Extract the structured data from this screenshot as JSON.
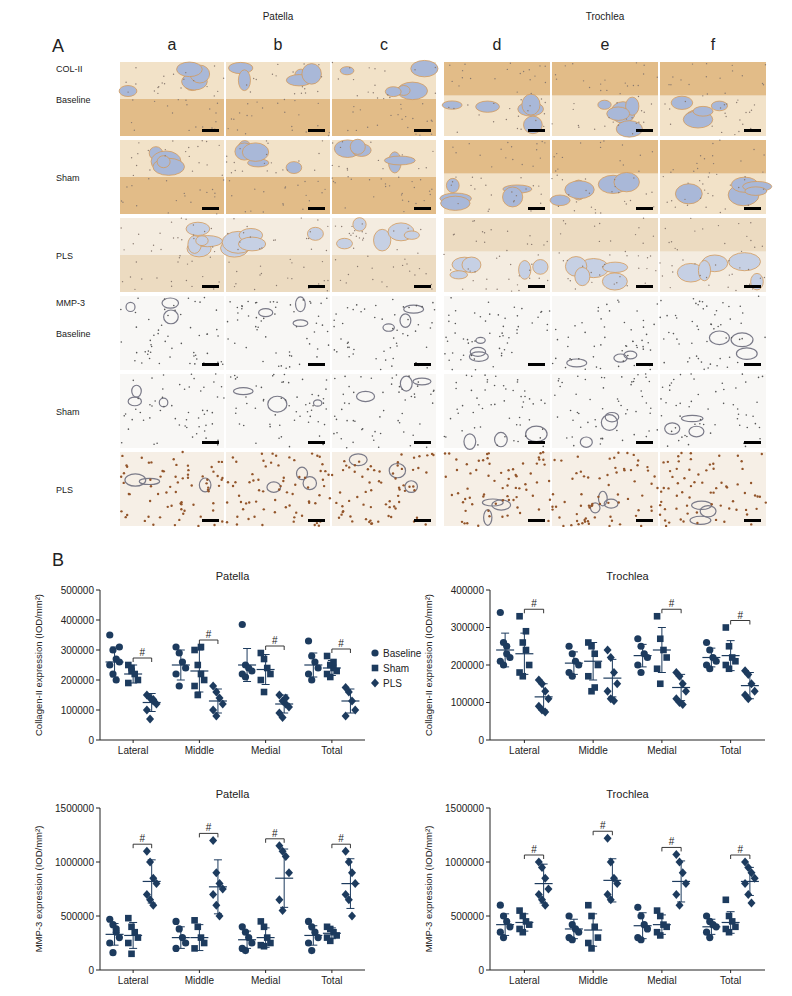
{
  "panel_a": {
    "label": "A",
    "groups": [
      {
        "title": "Patella",
        "columns": [
          "a",
          "b",
          "c"
        ]
      },
      {
        "title": "Trochlea",
        "columns": [
          "d",
          "e",
          "f"
        ]
      }
    ],
    "sections": [
      {
        "stain": "COL-II",
        "rows": [
          "Baseline",
          "Sham",
          "PLS"
        ]
      },
      {
        "stain": "MMP-3",
        "rows": [
          "Baseline",
          "Sham",
          "PLS"
        ]
      }
    ]
  },
  "panel_b": {
    "label": "B"
  },
  "chart_data": [
    {
      "type": "scatter",
      "title": "Patella",
      "y_label": "Collagen-II expression (IOD/mm²)",
      "categories": [
        "Lateral",
        "Middle",
        "Medial",
        "Total"
      ],
      "ylim": [
        0,
        500000
      ],
      "yticks": [
        0,
        100000,
        200000,
        300000,
        400000,
        500000
      ],
      "legend": "right",
      "series": [
        {
          "name": "Baseline",
          "marker": "circle",
          "color": "#1d3b5e",
          "values": [
            [
              350000,
              300000,
              270000,
              260000,
              250000,
              220000,
              200000,
              310000
            ],
            [
              310000,
              290000,
              260000,
              240000,
              220000,
              180000
            ],
            [
              385000,
              250000,
              240000,
              230000,
              220000,
              210000
            ],
            [
              330000,
              280000,
              260000,
              240000,
              220000,
              200000
            ]
          ],
          "mean": [
            260000,
            250000,
            250000,
            250000
          ],
          "sd": [
            50000,
            50000,
            55000,
            40000
          ]
        },
        {
          "name": "Sham",
          "marker": "square",
          "color": "#1d3b5e",
          "values": [
            [
              250000,
              230000,
              220000,
              200000,
              190000,
              240000
            ],
            [
              300000,
              250000,
              220000,
              200000,
              180000,
              150000,
              310000
            ],
            [
              290000,
              270000,
              240000,
              220000,
              200000,
              160000
            ],
            [
              280000,
              250000,
              240000,
              230000,
              220000,
              210000,
              260000
            ]
          ],
          "mean": [
            220000,
            230000,
            235000,
            240000
          ],
          "sd": [
            30000,
            70000,
            50000,
            25000
          ]
        },
        {
          "name": "PLS",
          "marker": "diamond",
          "color": "#1d3b5e",
          "values": [
            [
              150000,
              140000,
              130000,
              120000,
              100000,
              70000,
              135000
            ],
            [
              180000,
              160000,
              140000,
              120000,
              100000,
              80000
            ],
            [
              150000,
              130000,
              120000,
              110000,
              90000,
              75000,
              140000
            ],
            [
              175000,
              160000,
              130000,
              100000,
              80000
            ]
          ],
          "mean": [
            125000,
            130000,
            120000,
            130000
          ],
          "sd": [
            30000,
            40000,
            30000,
            40000
          ]
        }
      ],
      "annotations": [
        {
          "text": "#",
          "category": "Lateral",
          "between": [
            "Sham",
            "PLS"
          ]
        },
        {
          "text": "#",
          "category": "Middle",
          "between": [
            "Sham",
            "PLS"
          ]
        },
        {
          "text": "#",
          "category": "Medial",
          "between": [
            "Sham",
            "PLS"
          ]
        },
        {
          "text": "#",
          "category": "Total",
          "between": [
            "Sham",
            "PLS"
          ]
        }
      ]
    },
    {
      "type": "scatter",
      "title": "Trochlea",
      "y_label": "Collagen-II expression (IOD/mm²)",
      "categories": [
        "Lateral",
        "Middle",
        "Medial",
        "Total"
      ],
      "ylim": [
        0,
        400000
      ],
      "yticks": [
        0,
        100000,
        200000,
        300000,
        400000
      ],
      "series": [
        {
          "name": "Baseline",
          "marker": "circle",
          "color": "#1d3b5e",
          "values": [
            [
              340000,
              260000,
              230000,
              220000,
              210000,
              200000,
              250000
            ],
            [
              250000,
              230000,
              210000,
              200000,
              180000,
              170000
            ],
            [
              270000,
              250000,
              230000,
              220000,
              200000,
              180000
            ],
            [
              260000,
              240000,
              220000,
              210000,
              200000,
              190000
            ]
          ],
          "mean": [
            240000,
            205000,
            225000,
            220000
          ],
          "sd": [
            45000,
            30000,
            30000,
            25000
          ]
        },
        {
          "name": "Sham",
          "marker": "square",
          "color": "#1d3b5e",
          "values": [
            [
              330000,
              260000,
              240000,
              200000,
              180000,
              170000,
              290000
            ],
            [
              260000,
              250000,
              230000,
              200000,
              170000,
              130000,
              140000
            ],
            [
              330000,
              270000,
              240000,
              220000,
              190000,
              150000
            ],
            [
              300000,
              250000,
              220000,
              210000,
              200000,
              190000
            ]
          ],
          "mean": [
            230000,
            210000,
            240000,
            225000
          ],
          "sd": [
            55000,
            50000,
            60000,
            40000
          ]
        },
        {
          "name": "PLS",
          "marker": "diamond",
          "color": "#1d3b5e",
          "values": [
            [
              160000,
              150000,
              130000,
              110000,
              90000,
              80000,
              75000
            ],
            [
              240000,
              220000,
              180000,
              150000,
              130000,
              110000,
              105000
            ],
            [
              180000,
              170000,
              150000,
              130000,
              110000,
              100000,
              95000
            ],
            [
              185000,
              175000,
              150000,
              130000,
              120000,
              110000
            ]
          ],
          "mean": [
            115000,
            165000,
            140000,
            145000
          ],
          "sd": [
            35000,
            50000,
            35000,
            35000
          ]
        }
      ],
      "annotations": [
        {
          "text": "#",
          "category": "Lateral",
          "between": [
            "Sham",
            "PLS"
          ]
        },
        {
          "text": "#",
          "category": "Medial",
          "between": [
            "Sham",
            "PLS"
          ]
        },
        {
          "text": "#",
          "category": "Total",
          "between": [
            "Sham",
            "PLS"
          ]
        }
      ]
    },
    {
      "type": "scatter",
      "title": "Patella",
      "y_label": "MMP-3 expression (IOD/mm²)",
      "categories": [
        "Lateral",
        "Middle",
        "Medial",
        "Total"
      ],
      "ylim": [
        0,
        1500000
      ],
      "yticks": [
        0,
        500000,
        1000000,
        1500000
      ],
      "series": [
        {
          "name": "Baseline",
          "marker": "circle",
          "color": "#1d3b5e",
          "values": [
            [
              470000,
              420000,
              350000,
              300000,
              250000,
              160000,
              380000
            ],
            [
              450000,
              380000,
              300000,
              250000,
              200000
            ],
            [
              400000,
              350000,
              300000,
              250000,
              200000,
              180000
            ],
            [
              450000,
              400000,
              350000,
              300000,
              250000,
              180000
            ]
          ],
          "mean": [
            330000,
            300000,
            280000,
            320000
          ],
          "sd": [
            100000,
            100000,
            80000,
            90000
          ]
        },
        {
          "name": "Sham",
          "marker": "square",
          "color": "#1d3b5e",
          "values": [
            [
              480000,
              400000,
              350000,
              300000,
              250000,
              150000
            ],
            [
              460000,
              400000,
              300000,
              250000,
              200000
            ],
            [
              450000,
              400000,
              300000,
              250000,
              230000,
              220000
            ],
            [
              400000,
              380000,
              350000,
              320000,
              300000,
              270000
            ]
          ],
          "mean": [
            320000,
            300000,
            300000,
            340000
          ],
          "sd": [
            120000,
            120000,
            90000,
            50000
          ]
        },
        {
          "name": "PLS",
          "marker": "diamond",
          "color": "#1d3b5e",
          "values": [
            [
              1100000,
              1000000,
              850000,
              800000,
              700000,
              650000,
              600000
            ],
            [
              1200000,
              900000,
              800000,
              750000,
              700000,
              600000,
              500000
            ],
            [
              1150000,
              1100000,
              1050000,
              900000,
              650000,
              550000
            ],
            [
              1100000,
              1000000,
              900000,
              800000,
              700000,
              650000,
              500000
            ]
          ],
          "mean": [
            820000,
            770000,
            850000,
            800000
          ],
          "sd": [
            200000,
            250000,
            270000,
            230000
          ]
        }
      ],
      "annotations": [
        {
          "text": "#",
          "category": "Lateral",
          "between": [
            "Sham",
            "PLS"
          ]
        },
        {
          "text": "#",
          "category": "Middle",
          "between": [
            "Sham",
            "PLS"
          ]
        },
        {
          "text": "#",
          "category": "Medial",
          "between": [
            "Sham",
            "PLS"
          ]
        },
        {
          "text": "#",
          "category": "Total",
          "between": [
            "Sham",
            "PLS"
          ]
        }
      ]
    },
    {
      "type": "scatter",
      "title": "Trochlea",
      "y_label": "MMP-3 expression (IOD/mm²)",
      "categories": [
        "Lateral",
        "Middle",
        "Medial",
        "Total"
      ],
      "ylim": [
        0,
        1500000
      ],
      "yticks": [
        0,
        500000,
        1000000,
        1500000
      ],
      "series": [
        {
          "name": "Baseline",
          "marker": "circle",
          "color": "#1d3b5e",
          "values": [
            [
              600000,
              500000,
              450000,
              400000,
              350000,
              300000
            ],
            [
              500000,
              420000,
              380000,
              350000,
              300000,
              280000
            ],
            [
              580000,
              500000,
              420000,
              380000,
              300000,
              280000
            ],
            [
              500000,
              450000,
              420000,
              400000,
              350000,
              300000
            ]
          ],
          "mean": [
            420000,
            380000,
            410000,
            400000
          ],
          "sd": [
            100000,
            90000,
            120000,
            70000
          ]
        },
        {
          "name": "Sham",
          "marker": "square",
          "color": "#1d3b5e",
          "values": [
            [
              550000,
              500000,
              450000,
              420000,
              380000,
              350000
            ],
            [
              600000,
              500000,
              400000,
              300000,
              250000,
              200000
            ],
            [
              550000,
              500000,
              420000,
              400000,
              350000,
              320000
            ],
            [
              650000,
              500000,
              450000,
              400000,
              380000,
              350000
            ]
          ],
          "mean": [
            440000,
            370000,
            420000,
            440000
          ],
          "sd": [
            80000,
            150000,
            90000,
            100000
          ]
        },
        {
          "name": "PLS",
          "marker": "diamond",
          "color": "#1d3b5e",
          "values": [
            [
              1000000,
              950000,
              850000,
              750000,
              700000,
              650000,
              600000
            ],
            [
              1220000,
              1000000,
              850000,
              800000,
              700000,
              650000
            ],
            [
              1070000,
              1000000,
              900000,
              800000,
              700000,
              600000
            ],
            [
              1000000,
              950000,
              900000,
              850000,
              800000,
              700000,
              620000
            ]
          ],
          "mean": [
            800000,
            830000,
            820000,
            820000
          ],
          "sd": [
            180000,
            200000,
            190000,
            130000
          ]
        }
      ],
      "annotations": [
        {
          "text": "#",
          "category": "Lateral",
          "between": [
            "Sham",
            "PLS"
          ]
        },
        {
          "text": "#",
          "category": "Middle",
          "between": [
            "Sham",
            "PLS"
          ]
        },
        {
          "text": "#",
          "category": "Medial",
          "between": [
            "Sham",
            "PLS"
          ]
        },
        {
          "text": "#",
          "category": "Total",
          "between": [
            "Sham",
            "PLS"
          ]
        }
      ]
    }
  ]
}
